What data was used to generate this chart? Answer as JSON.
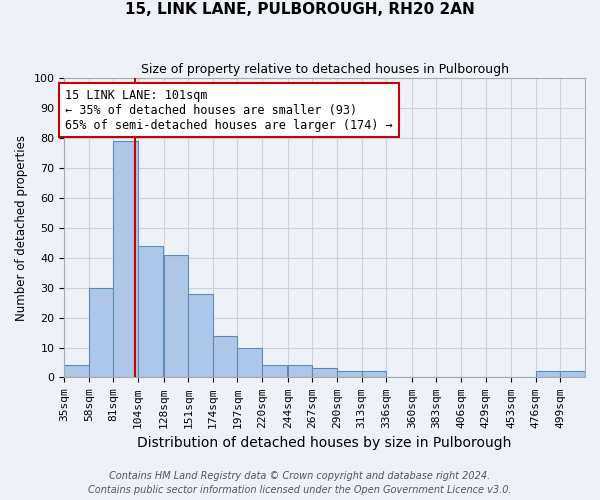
{
  "title": "15, LINK LANE, PULBOROUGH, RH20 2AN",
  "subtitle": "Size of property relative to detached houses in Pulborough",
  "xlabel": "Distribution of detached houses by size in Pulborough",
  "ylabel": "Number of detached properties",
  "footnote1": "Contains HM Land Registry data © Crown copyright and database right 2024.",
  "footnote2": "Contains public sector information licensed under the Open Government Licence v3.0.",
  "bin_labels": [
    "35sqm",
    "58sqm",
    "81sqm",
    "104sqm",
    "128sqm",
    "151sqm",
    "174sqm",
    "197sqm",
    "220sqm",
    "244sqm",
    "267sqm",
    "290sqm",
    "313sqm",
    "336sqm",
    "360sqm",
    "383sqm",
    "406sqm",
    "429sqm",
    "453sqm",
    "476sqm",
    "499sqm"
  ],
  "bin_edges": [
    35,
    58,
    81,
    104,
    128,
    151,
    174,
    197,
    220,
    244,
    267,
    290,
    313,
    336,
    360,
    383,
    406,
    429,
    453,
    476,
    499
  ],
  "bar_values": [
    4,
    30,
    79,
    44,
    41,
    28,
    14,
    10,
    4,
    4,
    3,
    2,
    2,
    0,
    0,
    0,
    0,
    0,
    0,
    2,
    2
  ],
  "bar_color": "#aec6e8",
  "bar_edgecolor": "#5b8db8",
  "grid_color": "#c8d4e4",
  "background_color": "#eef2f8",
  "vline_x": 101,
  "vline_color": "#cc0000",
  "ylim": [
    0,
    100
  ],
  "yticks": [
    0,
    10,
    20,
    30,
    40,
    50,
    60,
    70,
    80,
    90,
    100
  ],
  "annotation_text": "15 LINK LANE: 101sqm\n← 35% of detached houses are smaller (93)\n65% of semi-detached houses are larger (174) →",
  "annotation_box_edgecolor": "#cc0000",
  "annotation_box_facecolor": "white",
  "title_fontsize": 11,
  "subtitle_fontsize": 9,
  "xlabel_fontsize": 10,
  "ylabel_fontsize": 8.5,
  "tick_fontsize": 8,
  "annotation_fontsize": 8.5,
  "footnote_fontsize": 7
}
